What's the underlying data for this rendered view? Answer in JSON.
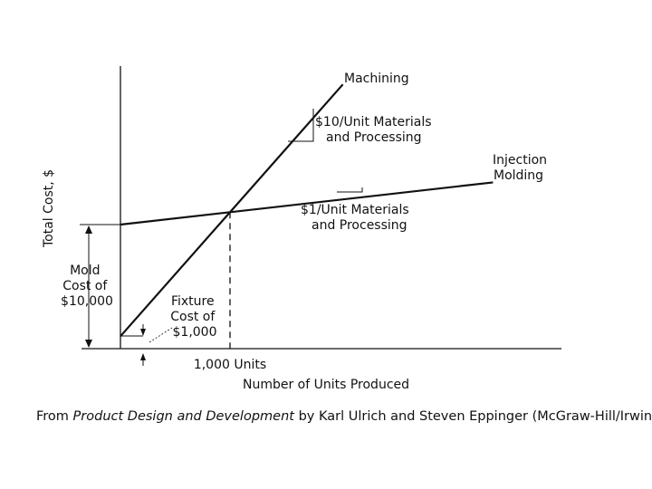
{
  "chart_data": {
    "type": "line",
    "title": "",
    "xlabel": "Number of Units Produced",
    "ylabel": "Total Cost, $",
    "grid": false,
    "legend": "none",
    "series": [
      {
        "name": "Machining",
        "fixed_cost": 1000,
        "unit_cost": 10
      },
      {
        "name": "Injection Molding",
        "fixed_cost": 10000,
        "unit_cost": 1
      }
    ],
    "breakeven": {
      "x": 1000,
      "y": 11000
    }
  },
  "labels": {
    "machining": "Machining",
    "injection_line1": "Injection",
    "injection_line2": "Molding",
    "machining_rate_line1": "$10/Unit Materials",
    "machining_rate_line2": "and Processing",
    "injection_rate_line1": "$1/Unit Materials",
    "injection_rate_line2": "and Processing",
    "mold_line1": "Mold",
    "mold_line2": "Cost of",
    "mold_line3": "$10,000",
    "fixture_line1": "Fixture",
    "fixture_line2": "Cost of",
    "fixture_line3": "$1,000",
    "breakeven_units": "1,000 Units"
  },
  "caption": {
    "prefix": "From ",
    "book": "Product Design and Development",
    "suffix": " by Karl Ulrich and Steven Eppinger (McGraw-Hill/Irwin)"
  }
}
